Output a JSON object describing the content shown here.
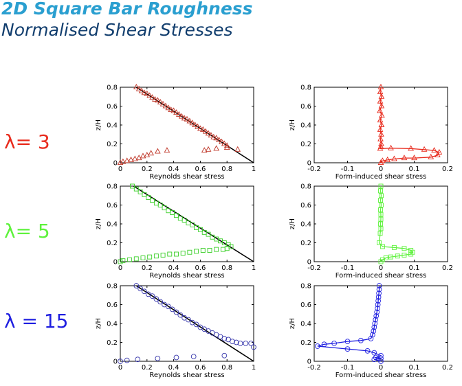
{
  "header": {
    "title": "2D Square Bar Roughness",
    "subtitle": "Normalised Shear Stresses"
  },
  "rows": [
    {
      "label": "λ= 3",
      "color": "#e82a1c"
    },
    {
      "label": "λ= 5",
      "color": "#5ef23c"
    },
    {
      "label": "λ = 15",
      "color": "#1f1fe0"
    }
  ],
  "chart_data": [
    {
      "type": "line",
      "row": 0,
      "col": 0,
      "xlabel": "Reynolds shear stress",
      "ylabel": "z/H",
      "xlim": [
        0,
        1
      ],
      "ylim": [
        0,
        0.8
      ],
      "xticks": [
        "0",
        "0.2",
        "0.4",
        "0.6",
        "0.8",
        "1"
      ],
      "yticks": [
        "0",
        "0.2",
        "0.4",
        "0.6",
        "0.8"
      ],
      "series": [
        {
          "kind": "line",
          "color": "#000000",
          "x": [
            0.12,
            1.0
          ],
          "y": [
            0.8,
            0.0
          ]
        },
        {
          "kind": "marker",
          "marker": "triangle",
          "color": "#c0392b",
          "x": [
            0.12,
            0.14,
            0.16,
            0.18,
            0.2,
            0.22,
            0.24,
            0.26,
            0.28,
            0.3,
            0.32,
            0.34,
            0.36,
            0.38,
            0.4,
            0.42,
            0.44,
            0.46,
            0.48,
            0.5,
            0.52,
            0.54,
            0.56,
            0.58,
            0.6,
            0.62,
            0.64,
            0.66,
            0.68,
            0.7,
            0.72,
            0.74,
            0.76,
            0.78,
            0.8
          ],
          "y": [
            0.8,
            0.78,
            0.76,
            0.74,
            0.73,
            0.71,
            0.69,
            0.67,
            0.66,
            0.64,
            0.62,
            0.6,
            0.58,
            0.56,
            0.55,
            0.53,
            0.51,
            0.49,
            0.47,
            0.46,
            0.44,
            0.42,
            0.4,
            0.38,
            0.36,
            0.35,
            0.33,
            0.31,
            0.29,
            0.27,
            0.26,
            0.24,
            0.22,
            0.2,
            0.18
          ]
        },
        {
          "kind": "marker",
          "marker": "triangle",
          "color": "#c0392b",
          "x": [
            0.0,
            0.02,
            0.05,
            0.08,
            0.11,
            0.14,
            0.17,
            0.2,
            0.23,
            0.28,
            0.35,
            0.63,
            0.66,
            0.72,
            0.8,
            0.88
          ],
          "y": [
            0.0,
            0.01,
            0.02,
            0.03,
            0.04,
            0.05,
            0.07,
            0.08,
            0.1,
            0.12,
            0.13,
            0.13,
            0.14,
            0.15,
            0.16,
            0.14
          ]
        }
      ]
    },
    {
      "type": "line",
      "row": 0,
      "col": 1,
      "xlabel": "Form-induced shear stress",
      "ylabel": "z/H",
      "xlim": [
        -0.2,
        0.2
      ],
      "ylim": [
        0,
        0.8
      ],
      "xticks": [
        "-0.2",
        "-0.1",
        "0",
        "0.1",
        "0.2"
      ],
      "yticks": [
        "0",
        "0.2",
        "0.4",
        "0.6",
        "0.8"
      ],
      "series": [
        {
          "kind": "both",
          "marker": "triangle",
          "color": "#e82a1c",
          "x": [
            0.0,
            -0.002,
            0.002,
            -0.002,
            0.002,
            -0.003,
            0.003,
            -0.002,
            0.002,
            -0.002,
            0.001,
            -0.001,
            0.001,
            0.0,
            -0.002,
            0.03,
            0.09,
            0.13,
            0.16,
            0.175,
            0.17,
            0.15,
            0.1,
            0.07,
            0.04,
            0.02,
            0.005,
            0.0
          ],
          "y": [
            0.8,
            0.75,
            0.7,
            0.65,
            0.6,
            0.55,
            0.5,
            0.45,
            0.4,
            0.35,
            0.3,
            0.25,
            0.2,
            0.17,
            0.15,
            0.155,
            0.15,
            0.14,
            0.13,
            0.11,
            0.08,
            0.06,
            0.05,
            0.05,
            0.04,
            0.03,
            0.02,
            0.0
          ]
        }
      ]
    },
    {
      "type": "line",
      "row": 1,
      "col": 0,
      "xlabel": "Reynolds shear stress",
      "ylabel": "z/H",
      "xlim": [
        0,
        1
      ],
      "ylim": [
        0,
        0.8
      ],
      "xticks": [
        "0",
        "0.2",
        "0.4",
        "0.6",
        "0.8",
        "1"
      ],
      "yticks": [
        "0",
        "0.2",
        "0.4",
        "0.6",
        "0.8"
      ],
      "series": [
        {
          "kind": "line",
          "color": "#000000",
          "x": [
            0.1,
            1.0
          ],
          "y": [
            0.8,
            0.0
          ]
        },
        {
          "kind": "marker",
          "marker": "square",
          "color": "#3ccf2a",
          "x": [
            0.09,
            0.12,
            0.15,
            0.18,
            0.21,
            0.24,
            0.27,
            0.3,
            0.33,
            0.36,
            0.39,
            0.42,
            0.45,
            0.48,
            0.51,
            0.54,
            0.57,
            0.6,
            0.63,
            0.66,
            0.69,
            0.72,
            0.75,
            0.78,
            0.81,
            0.83
          ],
          "y": [
            0.8,
            0.77,
            0.74,
            0.71,
            0.68,
            0.65,
            0.62,
            0.6,
            0.57,
            0.54,
            0.52,
            0.49,
            0.46,
            0.44,
            0.41,
            0.39,
            0.36,
            0.34,
            0.31,
            0.29,
            0.26,
            0.24,
            0.22,
            0.2,
            0.18,
            0.16
          ]
        },
        {
          "kind": "marker",
          "marker": "square",
          "color": "#3ccf2a",
          "x": [
            0.0,
            0.02,
            0.07,
            0.12,
            0.17,
            0.22,
            0.27,
            0.32,
            0.37,
            0.42,
            0.47,
            0.52,
            0.57,
            0.62,
            0.67,
            0.72,
            0.77,
            0.8
          ],
          "y": [
            0.0,
            0.01,
            0.02,
            0.03,
            0.04,
            0.05,
            0.06,
            0.07,
            0.08,
            0.08,
            0.09,
            0.1,
            0.11,
            0.12,
            0.12,
            0.13,
            0.13,
            0.14
          ]
        }
      ]
    },
    {
      "type": "line",
      "row": 1,
      "col": 1,
      "xlabel": "Form-induced shear stress",
      "ylabel": "z/H",
      "xlim": [
        -0.2,
        0.2
      ],
      "ylim": [
        0,
        0.8
      ],
      "xticks": [
        "-0.2",
        "-0.1",
        "0",
        "0.1",
        "0.2"
      ],
      "yticks": [
        "0",
        "0.2",
        "0.4",
        "0.6",
        "0.8"
      ],
      "series": [
        {
          "kind": "both",
          "marker": "square",
          "color": "#5ef23c",
          "x": [
            0.0,
            -0.001,
            0.001,
            -0.001,
            0.001,
            -0.001,
            0.0,
            0.0,
            -0.001,
            0.0,
            -0.002,
            -0.005,
            0.005,
            0.04,
            0.07,
            0.09,
            0.095,
            0.09,
            0.07,
            0.05,
            0.03,
            0.015,
            0.005,
            0.0
          ],
          "y": [
            0.8,
            0.75,
            0.7,
            0.65,
            0.6,
            0.55,
            0.5,
            0.45,
            0.4,
            0.35,
            0.3,
            0.2,
            0.16,
            0.15,
            0.14,
            0.12,
            0.1,
            0.08,
            0.07,
            0.06,
            0.05,
            0.04,
            0.02,
            0.0
          ]
        }
      ]
    },
    {
      "type": "line",
      "row": 2,
      "col": 0,
      "xlabel": "Reynolds shear stress",
      "ylabel": "z/H",
      "xlim": [
        0,
        1
      ],
      "ylim": [
        0,
        0.8
      ],
      "xticks": [
        "0",
        "0.2",
        "0.4",
        "0.6",
        "0.8",
        "1"
      ],
      "yticks": [
        "0",
        "0.2",
        "0.4",
        "0.6",
        "0.8"
      ],
      "series": [
        {
          "kind": "line",
          "color": "#000000",
          "x": [
            0.12,
            1.0
          ],
          "y": [
            0.8,
            0.0
          ]
        },
        {
          "kind": "marker",
          "marker": "circle",
          "color": "#3333aa",
          "x": [
            0.12,
            0.15,
            0.18,
            0.21,
            0.24,
            0.27,
            0.3,
            0.33,
            0.36,
            0.39,
            0.42,
            0.45,
            0.48,
            0.51,
            0.54,
            0.57,
            0.6,
            0.63,
            0.66,
            0.69,
            0.72,
            0.75,
            0.78,
            0.81,
            0.84,
            0.87,
            0.9,
            0.94,
            0.98,
            1.0
          ],
          "y": [
            0.8,
            0.77,
            0.74,
            0.71,
            0.69,
            0.66,
            0.63,
            0.6,
            0.58,
            0.55,
            0.52,
            0.49,
            0.46,
            0.44,
            0.41,
            0.39,
            0.36,
            0.34,
            0.32,
            0.3,
            0.28,
            0.26,
            0.24,
            0.23,
            0.21,
            0.2,
            0.19,
            0.19,
            0.19,
            0.15
          ]
        },
        {
          "kind": "marker",
          "marker": "circle",
          "color": "#3333aa",
          "x": [
            0.0,
            0.05,
            0.13,
            0.28,
            0.42,
            0.55,
            0.78
          ],
          "y": [
            0.0,
            0.01,
            0.02,
            0.03,
            0.04,
            0.05,
            0.06
          ]
        }
      ]
    },
    {
      "type": "line",
      "row": 2,
      "col": 1,
      "xlabel": "Form-induced shear stress",
      "ylabel": "z/H",
      "xlim": [
        -0.2,
        0.2
      ],
      "ylim": [
        0,
        0.8
      ],
      "xticks": [
        "-0.2",
        "-0.1",
        "0",
        "0.1",
        "0.2"
      ],
      "yticks": [
        "0",
        "0.2",
        "0.4",
        "0.6",
        "0.8"
      ],
      "series": [
        {
          "kind": "both",
          "marker": "circle",
          "color": "#1f1fe0",
          "x": [
            -0.005,
            -0.005,
            -0.006,
            -0.007,
            -0.008,
            -0.009,
            -0.01,
            -0.012,
            -0.014,
            -0.016,
            -0.018,
            -0.02,
            -0.022,
            -0.025,
            -0.03,
            -0.06,
            -0.1,
            -0.14,
            -0.17,
            -0.19,
            -0.1,
            -0.04,
            -0.02,
            0.0,
            -0.015,
            0.0,
            -0.02,
            0.0
          ],
          "y": [
            0.8,
            0.76,
            0.72,
            0.68,
            0.64,
            0.6,
            0.56,
            0.52,
            0.48,
            0.44,
            0.4,
            0.36,
            0.32,
            0.28,
            0.24,
            0.22,
            0.21,
            0.19,
            0.18,
            0.16,
            0.13,
            0.11,
            0.09,
            0.06,
            0.04,
            0.03,
            0.02,
            0.0
          ]
        }
      ]
    }
  ]
}
